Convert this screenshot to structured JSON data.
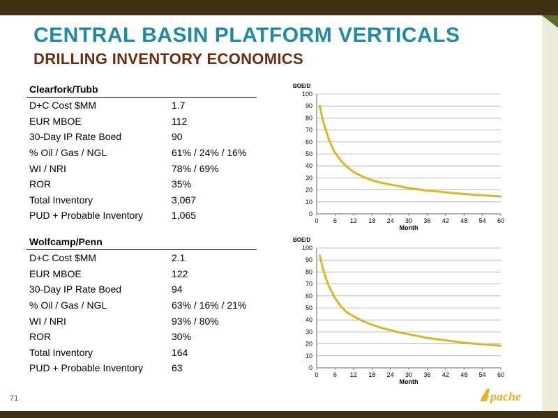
{
  "slide": {
    "title": "CENTRAL BASIN PLATFORM VERTICALS",
    "subtitle": "DRILLING INVENTORY ECONOMICS",
    "page_number": "71",
    "logo_text": "Apache",
    "colors": {
      "title": "#1f8aa6",
      "subtitle": "#6b2c10",
      "curve": "#e0b422",
      "frame": "#3f3115",
      "side_band": "#ecebd6"
    }
  },
  "tables": [
    {
      "heading": "Clearfork/Tubb",
      "rows": [
        {
          "label": "D+C Cost $MM",
          "value": "1.7"
        },
        {
          "label": "EUR MBOE",
          "value": "112"
        },
        {
          "label": "30-Day IP Rate Boed",
          "value": "90"
        },
        {
          "label": "% Oil / Gas / NGL",
          "value": "61% / 24% / 16%"
        },
        {
          "label": "WI / NRI",
          "value": "78% / 69%"
        },
        {
          "label": "ROR",
          "value": "35%"
        },
        {
          "label": "Total Inventory",
          "value": "3,067"
        },
        {
          "label": "PUD + Probable Inventory",
          "value": "1,065"
        }
      ]
    },
    {
      "heading": "Wolfcamp/Penn",
      "rows": [
        {
          "label": "D+C Cost $MM",
          "value": "2.1"
        },
        {
          "label": "EUR MBOE",
          "value": "122"
        },
        {
          "label": "30-Day IP Rate Boed",
          "value": "94"
        },
        {
          "label": "% Oil / Gas / NGL",
          "value": "63% / 16% / 21%"
        },
        {
          "label": "WI / NRI",
          "value": "93% / 80%"
        },
        {
          "label": "ROR",
          "value": "30%"
        },
        {
          "label": "Total Inventory",
          "value": "164"
        },
        {
          "label": "PUD + Probable Inventory",
          "value": "63"
        }
      ]
    }
  ],
  "chart_data": [
    {
      "type": "line",
      "ylabel": "BOE/D",
      "xlabel": "Month",
      "xlim": [
        0,
        60
      ],
      "ylim": [
        0,
        100
      ],
      "xticks": [
        0,
        6,
        12,
        18,
        24,
        30,
        36,
        42,
        48,
        54,
        60
      ],
      "yticks": [
        0,
        10,
        20,
        30,
        40,
        50,
        60,
        70,
        80,
        90,
        100
      ],
      "grid": true,
      "series": [
        {
          "x": [
            1,
            2,
            3,
            4,
            5,
            6,
            8,
            10,
            12,
            15,
            18,
            21,
            24,
            27,
            30,
            33,
            36,
            39,
            42,
            45,
            48,
            51,
            54,
            57,
            60
          ],
          "y": [
            90,
            78,
            70,
            62,
            56,
            51,
            44,
            39,
            35,
            31,
            28,
            26,
            24.5,
            23,
            21.5,
            20.5,
            19.5,
            18.7,
            18,
            17.2,
            16.6,
            16,
            15.5,
            15,
            14.5
          ]
        }
      ]
    },
    {
      "type": "line",
      "ylabel": "BOE/D",
      "xlabel": "Month",
      "xlim": [
        0,
        60
      ],
      "ylim": [
        0,
        100
      ],
      "xticks": [
        0,
        6,
        12,
        18,
        24,
        30,
        36,
        42,
        48,
        54,
        60
      ],
      "yticks": [
        0,
        10,
        20,
        30,
        40,
        50,
        60,
        70,
        80,
        90,
        100
      ],
      "grid": true,
      "series": [
        {
          "x": [
            1,
            2,
            3,
            4,
            5,
            6,
            8,
            10,
            12,
            15,
            18,
            21,
            24,
            27,
            30,
            33,
            36,
            39,
            42,
            45,
            48,
            51,
            54,
            57,
            60
          ],
          "y": [
            94,
            83,
            75,
            68,
            63,
            58,
            51,
            46,
            43,
            39,
            36,
            33.5,
            31.5,
            29.5,
            28,
            26.5,
            25,
            24,
            23,
            22,
            21,
            20.3,
            19.7,
            19,
            18.5
          ]
        }
      ]
    }
  ]
}
